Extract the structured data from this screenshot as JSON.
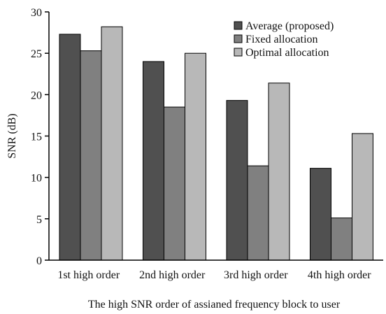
{
  "chart_data": {
    "type": "bar",
    "categories": [
      "1st high order",
      "2nd high order",
      "3rd high order",
      "4th high order"
    ],
    "series": [
      {
        "name": "Average (proposed)",
        "values": [
          27.3,
          24.0,
          19.3,
          11.1
        ],
        "color": "#505050"
      },
      {
        "name": "Fixed allocation",
        "values": [
          25.3,
          18.5,
          11.4,
          5.1
        ],
        "color": "#808080"
      },
      {
        "name": "Optimal allocation",
        "values": [
          28.2,
          25.0,
          21.4,
          15.3
        ],
        "color": "#b8b8b8"
      }
    ],
    "xlabel": "The high SNR order of assianed frequency block to user",
    "ylabel": "SNR (dB)",
    "ylim": [
      0,
      30
    ],
    "yticks": [
      0,
      5,
      10,
      15,
      20,
      25,
      30
    ],
    "grid": false,
    "legend_position": "top-right"
  }
}
